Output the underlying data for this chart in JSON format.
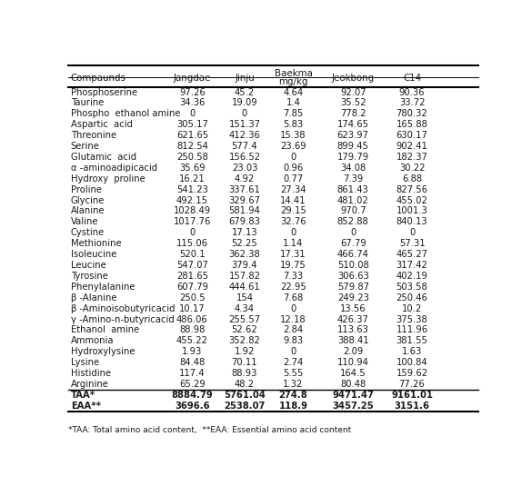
{
  "columns_header": [
    "Compaunds",
    "Jangdae",
    "Jinju",
    "Baekma",
    "Jeokbong",
    "C14"
  ],
  "subheader": [
    "",
    "",
    "",
    "mg/kg",
    "",
    ""
  ],
  "rows": [
    [
      "Phosphoserine",
      "97.26",
      "45.2",
      "4.64",
      "92.07",
      "90.36"
    ],
    [
      "Taurine",
      "34.36",
      "19.09",
      "1.4",
      "35.52",
      "33.72"
    ],
    [
      "Phospho  ethanol amine",
      "0",
      "0",
      "7.85",
      "778.2",
      "780.32"
    ],
    [
      "Aspartic  acid",
      "305.17",
      "151.37",
      "5.83",
      "174.65",
      "165.88"
    ],
    [
      "Threonine",
      "621.65",
      "412.36",
      "15.38",
      "623.97",
      "630.17"
    ],
    [
      "Serine",
      "812.54",
      "577.4",
      "23.69",
      "899.45",
      "902.41"
    ],
    [
      "Glutamic  acid",
      "250.58",
      "156.52",
      "0",
      "179.79",
      "182.37"
    ],
    [
      "α -aminoadipicacid",
      "35.69",
      "23.03",
      "0.96",
      "34.08",
      "30.22"
    ],
    [
      "Hydroxy  proline",
      "16.21",
      "4.92",
      "0.77",
      "7.39",
      "6.88"
    ],
    [
      "Proline",
      "541.23",
      "337.61",
      "27.34",
      "861.43",
      "827.56"
    ],
    [
      "Glycine",
      "492.15",
      "329.67",
      "14.41",
      "481.02",
      "455.02"
    ],
    [
      "Alanine",
      "1028.49",
      "581.94",
      "29.15",
      "970.7",
      "1001.3"
    ],
    [
      "Valine",
      "1017.76",
      "679.83",
      "32.76",
      "852.88",
      "840.13"
    ],
    [
      "Cystine",
      "0",
      "17.13",
      "0",
      "0",
      "0"
    ],
    [
      "Methionine",
      "115.06",
      "52.25",
      "1.14",
      "67.79",
      "57.31"
    ],
    [
      "Isoleucine",
      "520.1",
      "362.38",
      "17.31",
      "466.74",
      "465.27"
    ],
    [
      "Leucine",
      "547.07",
      "379.4",
      "19.75",
      "510.08",
      "317.42"
    ],
    [
      "Tyrosine",
      "281.65",
      "157.82",
      "7.33",
      "306.63",
      "402.19"
    ],
    [
      "Phenylalanine",
      "607.79",
      "444.61",
      "22.95",
      "579.87",
      "503.58"
    ],
    [
      "β -Alanine",
      "250.5",
      "154",
      "7.68",
      "249.23",
      "250.46"
    ],
    [
      "β -Aminoisobutyricacid",
      "10.17",
      "4.34",
      "0",
      "13.56",
      "10.2"
    ],
    [
      "γ -Amino-n-butyricacid",
      "486.06",
      "255.57",
      "12.18",
      "426.37",
      "375.38"
    ],
    [
      "Ethanol  amine",
      "88.98",
      "52.62",
      "2.84",
      "113.63",
      "111.96"
    ],
    [
      "Ammonia",
      "455.22",
      "352.82",
      "9.83",
      "388.41",
      "381.55"
    ],
    [
      "Hydroxylysine",
      "1.93",
      "1.92",
      "0",
      "2.09",
      "1.63"
    ],
    [
      "Lysine",
      "84.48",
      "70.11",
      "2.74",
      "110.94",
      "100.84"
    ],
    [
      "Histidine",
      "117.4",
      "88.93",
      "5.55",
      "164.5",
      "159.62"
    ],
    [
      "Arginine",
      "65.29",
      "48.2",
      "1.32",
      "80.48",
      "77.26"
    ],
    [
      "TAA*",
      "8884.79",
      "5761.04",
      "274.8",
      "9471.47",
      "9161.01"
    ],
    [
      "EAA**",
      "3696.6",
      "2538.07",
      "118.9",
      "3457.25",
      "3151.6"
    ]
  ],
  "bold_rows": [
    28,
    29
  ],
  "footer": "*TAA: Total amino acid content,  **EAA: Essential amino acid content",
  "bg_color": "#ffffff",
  "text_color": "#1a1a1a",
  "font_size": 7.2,
  "header_font_size": 7.4
}
